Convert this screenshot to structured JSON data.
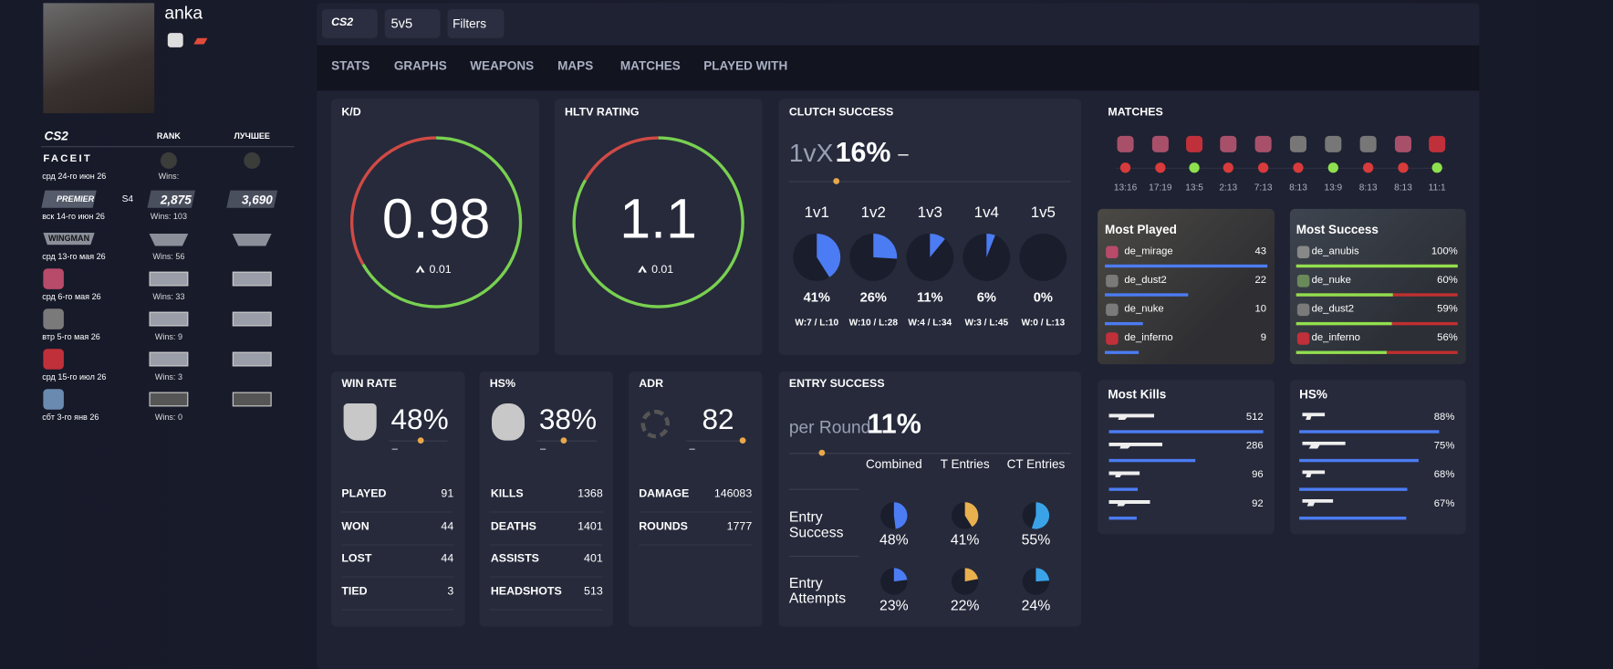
{
  "profile": {
    "name": "anka"
  },
  "ranks": {
    "logo": "CS2",
    "header": [
      "RANK",
      "ЛУЧШЕЕ"
    ],
    "rows": [
      {
        "type": "FACEIT",
        "date": "срд 24-го июн 26",
        "wins": "Wins:"
      },
      {
        "type": "PREMIER",
        "season": "S4",
        "rank": "2,875",
        "best": "3,690",
        "date": "вск 14-го июн 26",
        "wins": "Wins: 103"
      },
      {
        "type": "WINGMAN",
        "date": "срд 13-го мая 26",
        "wins": "Wins: 56"
      },
      {
        "date": "срд 6-го мая 26",
        "wins": "Wins: 33"
      },
      {
        "date": "втр 5-го мая 26",
        "wins": "Wins: 9"
      },
      {
        "date": "срд 15-го июл 26",
        "wins": "Wins: 3"
      },
      {
        "date": "сбт 3-го янв 26",
        "wins": "Wins: 0"
      }
    ]
  },
  "toolbar": {
    "game": "CS2",
    "mode": "5v5",
    "filters": "Filters"
  },
  "tabs": [
    "STATS",
    "GRAPHS",
    "WEAPONS",
    "MAPS",
    "MATCHES",
    "PLAYED WITH"
  ],
  "kd": {
    "title": "K/D",
    "value": "0.98",
    "delta": "0.01"
  },
  "hltv": {
    "title": "HLTV RATING",
    "value": "1.1",
    "delta": "0.01"
  },
  "clutch": {
    "title": "CLUTCH SUCCESS",
    "prefix": "1vX",
    "value": "16%",
    "trend": "–",
    "items": [
      {
        "label": "1v1",
        "pct": {
          "value": 41,
          "label": "41%"
        },
        "record": "W:7 / L:10"
      },
      {
        "label": "1v2",
        "pct": {
          "value": 26,
          "label": "26%"
        },
        "record": "W:10 / L:28"
      },
      {
        "label": "1v3",
        "pct": {
          "value": 11,
          "label": "11%"
        },
        "record": "W:4 / L:34"
      },
      {
        "label": "1v4",
        "pct": {
          "value": 6,
          "label": "6%"
        },
        "record": "W:3 / L:45"
      },
      {
        "label": "1v5",
        "pct": {
          "value": 0,
          "label": "0%"
        },
        "record": "W:0 / L:13"
      }
    ]
  },
  "matches": {
    "title": "MATCHES",
    "items": [
      {
        "score": "13:16",
        "color": "#d83b3b"
      },
      {
        "score": "17:19",
        "color": "#d83b3b"
      },
      {
        "score": "13:5",
        "color": "#8ee04f"
      },
      {
        "score": "2:13",
        "color": "#d83b3b"
      },
      {
        "score": "7:13",
        "color": "#d83b3b"
      },
      {
        "score": "8:13",
        "color": "#d83b3b"
      },
      {
        "score": "13:9",
        "color": "#8ee04f"
      },
      {
        "score": "8:13",
        "color": "#d83b3b"
      },
      {
        "score": "8:13",
        "color": "#d83b3b"
      },
      {
        "score": "11:1",
        "color": "#8ee04f"
      }
    ]
  },
  "most_played": {
    "title": "Most Played",
    "rows": [
      {
        "map": "de_mirage",
        "count": 43
      },
      {
        "map": "de_dust2",
        "count": 22
      },
      {
        "map": "de_nuke",
        "count": 10
      },
      {
        "map": "de_inferno",
        "count": 9
      }
    ]
  },
  "most_success": {
    "title": "Most Success",
    "rows": [
      {
        "map": "de_anubis",
        "rate": {
          "value": 100,
          "label": "100%"
        }
      },
      {
        "map": "de_nuke",
        "rate": {
          "value": 60,
          "label": "60%"
        }
      },
      {
        "map": "de_dust2",
        "rate": {
          "value": 59,
          "label": "59%"
        }
      },
      {
        "map": "de_inferno",
        "rate": {
          "value": 56,
          "label": "56%"
        }
      }
    ]
  },
  "win_rate": {
    "title": "WIN RATE",
    "value": "48%",
    "trend": "–",
    "rows": [
      {
        "label": "PLAYED",
        "value": 91
      },
      {
        "label": "WON",
        "value": 44
      },
      {
        "label": "LOST",
        "value": 44
      },
      {
        "label": "TIED",
        "value": 3
      }
    ]
  },
  "hs": {
    "title": "HS%",
    "value": "38%",
    "trend": "–",
    "rows": [
      {
        "label": "KILLS",
        "value": 1368
      },
      {
        "label": "DEATHS",
        "value": 1401
      },
      {
        "label": "ASSISTS",
        "value": 401
      },
      {
        "label": "HEADSHOTS",
        "value": 513
      }
    ]
  },
  "adr": {
    "title": "ADR",
    "value": "82",
    "trend": "–",
    "rows": [
      {
        "label": "DAMAGE",
        "value": 146083
      },
      {
        "label": "ROUNDS",
        "value": 1777
      }
    ]
  },
  "entry": {
    "title": "ENTRY SUCCESS",
    "prefix": "per Round",
    "value": "11%",
    "columns": [
      "Combined",
      "T Entries",
      "CT Entries"
    ],
    "colors": [
      "#4c7cf3",
      "#e8b04e",
      "#3aa3e8"
    ],
    "rows": [
      {
        "label": [
          "Entry",
          "Success"
        ],
        "values": [
          {
            "value": 48,
            "label": "48%"
          },
          {
            "value": 41,
            "label": "41%"
          },
          {
            "value": 55,
            "label": "55%"
          }
        ]
      },
      {
        "label": [
          "Entry",
          "Attempts"
        ],
        "values": [
          {
            "value": 23,
            "label": "23%"
          },
          {
            "value": 22,
            "label": "22%"
          },
          {
            "value": 24,
            "label": "24%"
          }
        ]
      }
    ]
  },
  "most_kills": {
    "title": "Most Kills",
    "values": [
      512,
      286,
      96,
      92
    ]
  },
  "hs_weapons": {
    "title": "HS%",
    "values": [
      {
        "value": 88,
        "label": "88%"
      },
      {
        "value": 75,
        "label": "75%"
      },
      {
        "value": 68,
        "label": "68%"
      },
      {
        "value": 67,
        "label": "67%"
      }
    ]
  }
}
